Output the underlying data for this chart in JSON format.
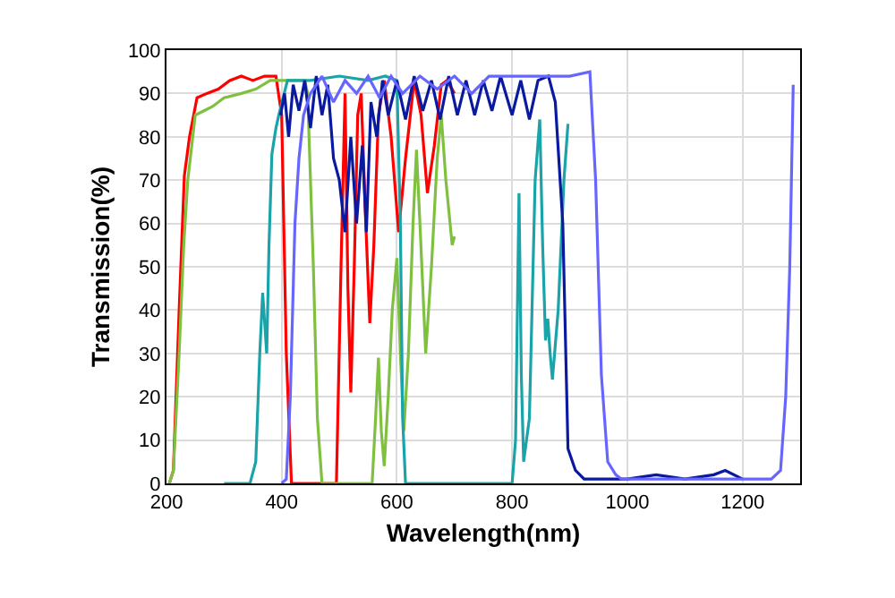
{
  "chart_data": {
    "type": "line",
    "xlabel": "Wavelength(nm)",
    "ylabel": "Transmission(%)",
    "xlim": [
      200,
      1300
    ],
    "ylim": [
      0,
      100
    ],
    "xticks": [
      200,
      400,
      600,
      800,
      1000,
      1200
    ],
    "yticks": [
      0,
      10,
      20,
      30,
      40,
      50,
      60,
      70,
      80,
      90,
      100
    ],
    "grid": true,
    "marker": "none",
    "line_style": "solid",
    "series": [
      {
        "color": "#ff0000",
        "x": [
          205,
          212,
          222,
          231,
          240,
          253,
          270,
          290,
          310,
          330,
          350,
          370,
          390,
          400,
          408,
          417,
          450,
          480,
          495,
          503,
          510,
          515,
          520,
          526,
          532,
          538,
          546,
          553,
          560,
          568,
          578,
          590,
          603,
          615,
          630,
          642,
          653,
          665,
          677,
          687,
          700
        ],
        "values": [
          0,
          3,
          40,
          71,
          80,
          89,
          90,
          91,
          93,
          94,
          93,
          94,
          94,
          85,
          30,
          0,
          0,
          0,
          0,
          50,
          90,
          45,
          21,
          50,
          85,
          90,
          60,
          37,
          55,
          85,
          93,
          80,
          58,
          75,
          93,
          85,
          67,
          78,
          92,
          93,
          90
        ]
      },
      {
        "color": "#80c040",
        "x": [
          205,
          212,
          222,
          230,
          237,
          250,
          265,
          280,
          300,
          330,
          355,
          380,
          410,
          440,
          445,
          455,
          462,
          470,
          500,
          540,
          557,
          563,
          568,
          573,
          578,
          585,
          592,
          600,
          606,
          612,
          620,
          628,
          634,
          640,
          650,
          660,
          670,
          677,
          685,
          696,
          700
        ],
        "values": [
          0,
          3,
          30,
          55,
          70,
          85,
          86,
          87,
          89,
          90,
          91,
          93,
          93,
          93,
          90,
          50,
          15,
          0,
          0,
          0,
          0,
          15,
          29,
          12,
          4,
          20,
          40,
          52,
          30,
          12,
          30,
          60,
          77,
          60,
          30,
          50,
          75,
          85,
          70,
          55,
          57
        ]
      },
      {
        "color": "#1aa3a8",
        "x": [
          300,
          345,
          355,
          362,
          367,
          371,
          374,
          378,
          383,
          390,
          395,
          410,
          450,
          500,
          550,
          580,
          600,
          606,
          610,
          615,
          650,
          700,
          760,
          800,
          806,
          812,
          816,
          820,
          830,
          840,
          848,
          853,
          858,
          862,
          866,
          870,
          880,
          890,
          897
        ],
        "values": [
          0,
          0,
          5,
          30,
          44,
          36,
          30,
          55,
          76,
          82,
          85,
          93,
          93,
          94,
          93,
          94,
          93,
          60,
          15,
          0,
          0,
          0,
          0,
          0,
          10,
          67,
          25,
          5,
          15,
          70,
          84,
          55,
          33,
          38,
          30,
          24,
          40,
          70,
          83
        ]
      },
      {
        "color": "#0a1aa0",
        "x": [
          398,
          405,
          412,
          420,
          430,
          440,
          450,
          460,
          470,
          480,
          490,
          500,
          510,
          520,
          530,
          540,
          547,
          555,
          565,
          575,
          585,
          600,
          615,
          630,
          645,
          660,
          675,
          690,
          705,
          720,
          735,
          750,
          765,
          780,
          800,
          815,
          830,
          845,
          863,
          875,
          888,
          897,
          910,
          925,
          950,
          1000,
          1050,
          1100,
          1150,
          1170,
          1200
        ],
        "values": [
          85,
          90,
          80,
          92,
          86,
          93,
          82,
          94,
          85,
          92,
          75,
          70,
          58,
          80,
          60,
          78,
          58,
          88,
          80,
          93,
          85,
          93,
          84,
          94,
          86,
          93,
          84,
          94,
          85,
          93,
          85,
          93,
          86,
          94,
          85,
          93,
          84,
          93,
          94,
          88,
          60,
          8,
          3,
          1,
          1,
          1,
          2,
          1,
          2,
          3,
          1
        ]
      },
      {
        "color": "#6666ff",
        "x": [
          400,
          408,
          415,
          423,
          430,
          438,
          450,
          470,
          490,
          510,
          530,
          550,
          570,
          590,
          610,
          640,
          670,
          700,
          730,
          760,
          800,
          850,
          900,
          935,
          945,
          955,
          966,
          980,
          990,
          1050,
          1100,
          1150,
          1200,
          1250,
          1266,
          1275,
          1282,
          1288
        ],
        "values": [
          0,
          1,
          20,
          60,
          75,
          85,
          90,
          94,
          88,
          93,
          90,
          94,
          89,
          94,
          90,
          94,
          91,
          94,
          90,
          94,
          94,
          94,
          94,
          95,
          70,
          25,
          5,
          2,
          1,
          1,
          1,
          1,
          1,
          1,
          3,
          20,
          50,
          92
        ]
      }
    ]
  }
}
